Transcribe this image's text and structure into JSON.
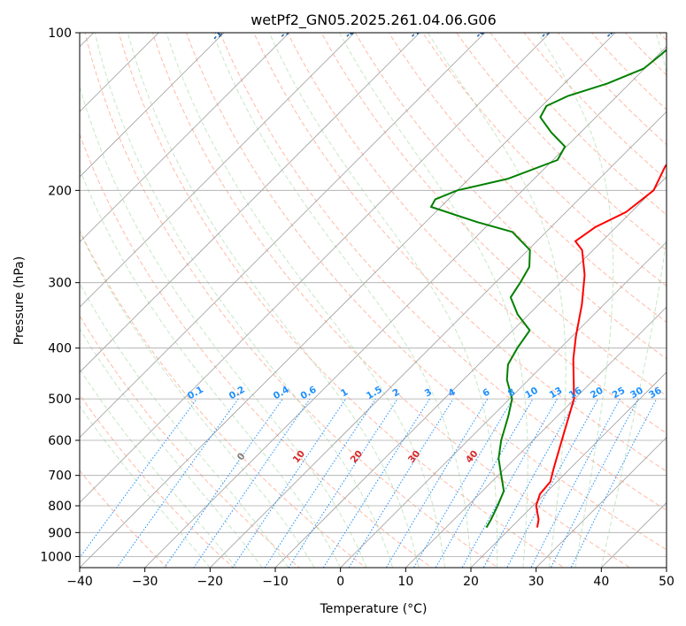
{
  "chart_data": {
    "type": "line",
    "subtype": "skew-T log-P diagram",
    "title": "wetPf2_GN05.2025.261.04.06.G06",
    "xlabel": "Temperature (°C)",
    "ylabel": "Pressure (hPa)",
    "xlim": [
      -40,
      50
    ],
    "ylim": [
      1050,
      100
    ],
    "x_ticks": [
      -40,
      -30,
      -20,
      -10,
      0,
      10,
      20,
      30,
      40,
      50
    ],
    "x_tick_labels": [
      "−40",
      "−30",
      "−20",
      "−10",
      "0",
      "10",
      "20",
      "30",
      "40",
      "50"
    ],
    "y_ticks": [
      100,
      200,
      300,
      400,
      500,
      600,
      700,
      800,
      900,
      1000
    ],
    "y_tick_labels": [
      "100",
      "200",
      "300",
      "400",
      "500",
      "600",
      "700",
      "800",
      "900",
      "1000"
    ],
    "grid": true,
    "colors": {
      "temperature": "#ff0000",
      "dewpoint": "#008000",
      "isotherm": "#9e9e9e",
      "isobar": "#aaaaaa",
      "dry_adiabat": "#ff8c69",
      "moist_adiabat": "#8fcf8f",
      "mixing_ratio": "#1e90ff",
      "isotherm_label": "#2166ac",
      "dry_adiabat_label": "#d62728",
      "zero_label": "#808080"
    },
    "series": [
      {
        "name": "Temperature",
        "color": "#ff0000",
        "points": [
          {
            "p": 880,
            "t": 24.0
          },
          {
            "p": 850,
            "t": 23.0
          },
          {
            "p": 800,
            "t": 20.5
          },
          {
            "p": 760,
            "t": 19.3
          },
          {
            "p": 720,
            "t": 19.0
          },
          {
            "p": 680,
            "t": 17.5
          },
          {
            "p": 600,
            "t": 14.4
          },
          {
            "p": 500,
            "t": 9.9
          },
          {
            "p": 420,
            "t": 3.7
          },
          {
            "p": 380,
            "t": 0.6
          },
          {
            "p": 330,
            "t": -3.4
          },
          {
            "p": 290,
            "t": -7.5
          },
          {
            "p": 260,
            "t": -11.7
          },
          {
            "p": 250,
            "t": -14.1
          },
          {
            "p": 235,
            "t": -13.2
          },
          {
            "p": 220,
            "t": -10.8
          },
          {
            "p": 200,
            "t": -9.9
          },
          {
            "p": 180,
            "t": -11.8
          },
          {
            "p": 165,
            "t": -12.4
          },
          {
            "p": 150,
            "t": -10.2
          },
          {
            "p": 140,
            "t": -7.1
          },
          {
            "p": 130,
            "t": -6.5
          },
          {
            "p": 120,
            "t": -5.8
          },
          {
            "p": 110,
            "t": -3.8
          },
          {
            "p": 100,
            "t": -1.2
          }
        ]
      },
      {
        "name": "Dewpoint",
        "color": "#008000",
        "points": [
          {
            "p": 880,
            "t": 16.2
          },
          {
            "p": 850,
            "t": 15.7
          },
          {
            "p": 800,
            "t": 14.6
          },
          {
            "p": 750,
            "t": 13.3
          },
          {
            "p": 700,
            "t": 10.5
          },
          {
            "p": 650,
            "t": 7.5
          },
          {
            "p": 600,
            "t": 5.1
          },
          {
            "p": 540,
            "t": 2.5
          },
          {
            "p": 500,
            "t": 0.4
          },
          {
            "p": 460,
            "t": -3.3
          },
          {
            "p": 430,
            "t": -5.5
          },
          {
            "p": 400,
            "t": -6.6
          },
          {
            "p": 370,
            "t": -7.4
          },
          {
            "p": 345,
            "t": -11.7
          },
          {
            "p": 320,
            "t": -15.4
          },
          {
            "p": 300,
            "t": -16.2
          },
          {
            "p": 280,
            "t": -17.2
          },
          {
            "p": 260,
            "t": -19.7
          },
          {
            "p": 240,
            "t": -25.2
          },
          {
            "p": 230,
            "t": -32.0
          },
          {
            "p": 215,
            "t": -41.5
          },
          {
            "p": 208,
            "t": -42.0
          },
          {
            "p": 200,
            "t": -40.0
          },
          {
            "p": 190,
            "t": -34.0
          },
          {
            "p": 175,
            "t": -29.3
          },
          {
            "p": 165,
            "t": -30.2
          },
          {
            "p": 155,
            "t": -34.5
          },
          {
            "p": 145,
            "t": -38.5
          },
          {
            "p": 138,
            "t": -39.3
          },
          {
            "p": 132,
            "t": -37.5
          },
          {
            "p": 125,
            "t": -33.4
          },
          {
            "p": 117,
            "t": -30.1
          },
          {
            "p": 110,
            "t": -29.6
          },
          {
            "p": 104,
            "t": -29.3
          },
          {
            "p": 100,
            "t": -29.5
          }
        ]
      }
    ],
    "isotherm_labels": [
      {
        "text": "-100",
        "t": -100
      },
      {
        "text": "-90",
        "t": -90
      },
      {
        "text": "-80",
        "t": -80
      },
      {
        "text": "-70",
        "t": -70
      },
      {
        "text": "-60",
        "t": -60
      },
      {
        "text": "-50",
        "t": -50
      },
      {
        "text": "-40",
        "t": -40
      },
      {
        "text": "-30",
        "t": -30
      },
      {
        "text": "-20",
        "t": -20
      },
      {
        "text": "-10",
        "t": -10
      }
    ],
    "mixing_ratio_labels": [
      "0.1",
      "0.2",
      "0.4",
      "0.6",
      "1",
      "1.5",
      "2",
      "3",
      "4",
      "6",
      "8",
      "10",
      "13",
      "16",
      "20",
      "25",
      "30",
      "36"
    ],
    "dry_adiabat_labels": [
      {
        "text": "0",
        "t": 0
      },
      {
        "text": "10",
        "t": 10
      },
      {
        "text": "20",
        "t": 20
      },
      {
        "text": "30",
        "t": 30
      },
      {
        "text": "40",
        "t": 40
      }
    ]
  }
}
